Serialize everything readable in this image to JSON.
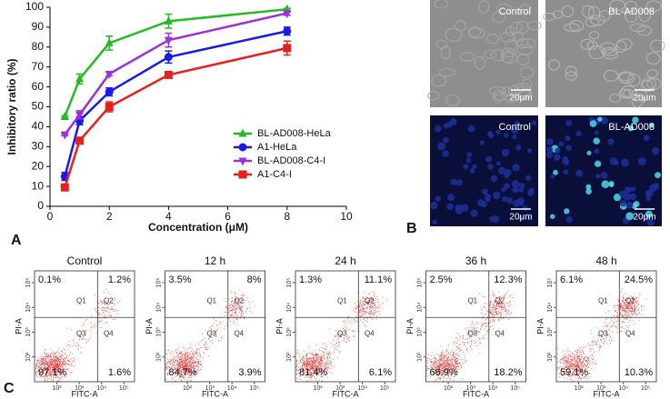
{
  "panel_labels": [
    "A",
    "B",
    "C"
  ],
  "images": [
    {
      "label": "Control",
      "scale_bar": "20μm"
    },
    {
      "label": "BL-AD008",
      "scale_bar": "20μm"
    },
    {
      "label": "Control",
      "scale_bar": "20μm"
    },
    {
      "label": "BL-AD008",
      "scale_bar": "20μm"
    }
  ],
  "chart_data": [
    {
      "type": "line",
      "xlabel": "Concentration (μM)",
      "ylabel": "Inhibitory ratio (%)",
      "x": [
        0.5,
        1,
        2,
        4,
        8
      ],
      "xlim": [
        0,
        10
      ],
      "xticks": [
        0,
        2,
        4,
        6,
        8,
        10
      ],
      "ylim": [
        0,
        100
      ],
      "yticks": [
        0,
        10,
        20,
        30,
        40,
        50,
        60,
        70,
        80,
        90,
        100
      ],
      "series": [
        {
          "name": "BL-AD008-HeLa",
          "color": "#22bb22",
          "marker": "triangle-up",
          "values": [
            45,
            64,
            82,
            93,
            99
          ],
          "errors": [
            0.5,
            2.5,
            3.5,
            3.5,
            0.5
          ]
        },
        {
          "name": "A1-HeLa",
          "color": "#1a1ae6",
          "marker": "circle",
          "values": [
            15,
            43,
            57.5,
            75,
            88
          ],
          "errors": [
            2,
            2,
            2,
            3,
            2
          ]
        },
        {
          "name": "BL-AD008-C4-I",
          "color": "#9b30d9",
          "marker": "triangle-down",
          "values": [
            36,
            46,
            66.5,
            83.5,
            97
          ],
          "errors": [
            0.5,
            2,
            1,
            3.5,
            1
          ]
        },
        {
          "name": "A1-C4-I",
          "color": "#e62020",
          "marker": "square",
          "values": [
            9.5,
            33,
            50,
            66,
            79.5
          ],
          "errors": [
            1.5,
            1,
            2.5,
            1,
            3.5
          ]
        }
      ]
    },
    {
      "type": "quadrant",
      "title": "Control",
      "xlabel": "FITC-A",
      "ylabel": "PI-A",
      "quadrants": [
        "Q1",
        "Q2",
        "Q3",
        "Q4"
      ],
      "values": [
        0.1,
        1.2,
        97.1,
        1.6
      ],
      "value_labels": [
        "0.1%",
        "1.2%",
        "97.1%",
        "1.6%"
      ],
      "log_scale": true,
      "xlim": [
        10,
        300000
      ],
      "ylim": [
        10,
        300000
      ],
      "xticks": [
        {
          "value": 100,
          "label": "10²"
        },
        {
          "value": 1000,
          "label": "10³"
        },
        {
          "value": 10000,
          "label": "10⁴"
        },
        {
          "value": 100000,
          "label": "10⁵"
        }
      ],
      "yticks": [
        {
          "value": 100,
          "label": "10²"
        },
        {
          "value": 1000,
          "label": "10³"
        },
        {
          "value": 10000,
          "label": "10⁴"
        },
        {
          "value": 100000,
          "label": "10⁵"
        }
      ]
    },
    {
      "type": "quadrant",
      "title": "12 h",
      "xlabel": "FITC-A",
      "ylabel": "PI-A",
      "quadrants": [
        "Q1",
        "Q2",
        "Q3",
        "Q4"
      ],
      "values": [
        3.5,
        8,
        84.7,
        3.9
      ],
      "value_labels": [
        "3.5%",
        "8%",
        "84.7%",
        "3.9%"
      ],
      "log_scale": true,
      "xlim": [
        10,
        300000
      ],
      "ylim": [
        10,
        300000
      ],
      "xticks": [
        {
          "value": 100,
          "label": "10²"
        },
        {
          "value": 1000,
          "label": "10³"
        },
        {
          "value": 10000,
          "label": "10⁴"
        },
        {
          "value": 100000,
          "label": "10⁵"
        }
      ],
      "yticks": [
        {
          "value": 100,
          "label": "10²"
        },
        {
          "value": 1000,
          "label": "10³"
        },
        {
          "value": 10000,
          "label": "10⁴"
        },
        {
          "value": 100000,
          "label": "10⁵"
        }
      ]
    },
    {
      "type": "quadrant",
      "title": "24 h",
      "xlabel": "FITC-A",
      "ylabel": "PI-A",
      "quadrants": [
        "Q1",
        "Q2",
        "Q3",
        "Q4"
      ],
      "values": [
        1.3,
        11.1,
        81.4,
        6.1
      ],
      "value_labels": [
        "1.3%",
        "11.1%",
        "81.4%",
        "6.1%"
      ],
      "log_scale": true,
      "xlim": [
        10,
        300000
      ],
      "ylim": [
        10,
        300000
      ],
      "xticks": [
        {
          "value": 100,
          "label": "10²"
        },
        {
          "value": 1000,
          "label": "10³"
        },
        {
          "value": 10000,
          "label": "10⁴"
        },
        {
          "value": 100000,
          "label": "10⁵"
        }
      ],
      "yticks": [
        {
          "value": 100,
          "label": "10²"
        },
        {
          "value": 1000,
          "label": "10³"
        },
        {
          "value": 10000,
          "label": "10⁴"
        },
        {
          "value": 100000,
          "label": "10⁵"
        }
      ]
    },
    {
      "type": "quadrant",
      "title": "36 h",
      "xlabel": "FITC-A",
      "ylabel": "PI-A",
      "quadrants": [
        "Q1",
        "Q2",
        "Q3",
        "Q4"
      ],
      "values": [
        2.5,
        12.3,
        66.9,
        18.2
      ],
      "value_labels": [
        "2.5%",
        "12.3%",
        "66.9%",
        "18.2%"
      ],
      "log_scale": true,
      "xlim": [
        10,
        300000
      ],
      "ylim": [
        10,
        300000
      ],
      "xticks": [
        {
          "value": 100,
          "label": "10²"
        },
        {
          "value": 1000,
          "label": "10³"
        },
        {
          "value": 10000,
          "label": "10⁴"
        },
        {
          "value": 100000,
          "label": "10⁵"
        }
      ],
      "yticks": [
        {
          "value": 100,
          "label": "10²"
        },
        {
          "value": 1000,
          "label": "10³"
        },
        {
          "value": 10000,
          "label": "10⁴"
        },
        {
          "value": 100000,
          "label": "10⁵"
        }
      ]
    },
    {
      "type": "quadrant",
      "title": "48 h",
      "xlabel": "FITC-A",
      "ylabel": "PI-A",
      "quadrants": [
        "Q1",
        "Q2",
        "Q3",
        "Q4"
      ],
      "values": [
        6.1,
        24.5,
        59.1,
        10.3
      ],
      "value_labels": [
        "6.1%",
        "24.5%",
        "59.1%",
        "10.3%"
      ],
      "log_scale": true,
      "xlim": [
        10,
        300000
      ],
      "ylim": [
        10,
        300000
      ],
      "xticks": [
        {
          "value": 100,
          "label": "10²"
        },
        {
          "value": 1000,
          "label": "10³"
        },
        {
          "value": 10000,
          "label": "10⁴"
        },
        {
          "value": 100000,
          "label": "10⁵"
        }
      ],
      "yticks": [
        {
          "value": 100,
          "label": "10²"
        },
        {
          "value": 1000,
          "label": "10³"
        },
        {
          "value": 10000,
          "label": "10⁴"
        },
        {
          "value": 100000,
          "label": "10⁵"
        }
      ]
    }
  ]
}
